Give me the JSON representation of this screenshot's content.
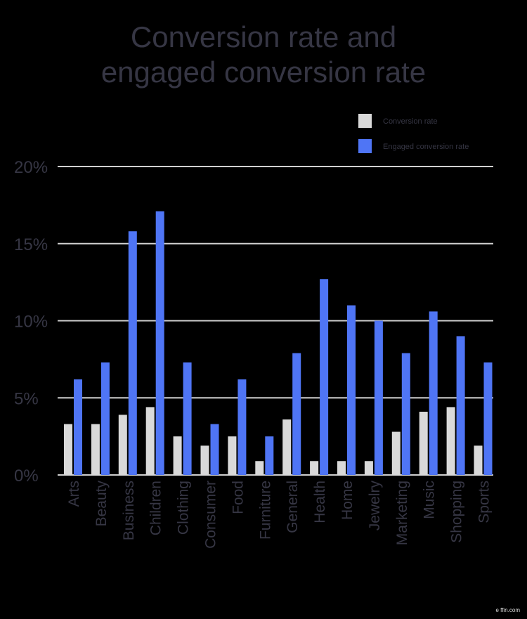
{
  "chart_data": {
    "type": "bar",
    "title_lines": [
      "Conversion rate and",
      "engaged conversion rate"
    ],
    "categories": [
      "Arts",
      "Beauty",
      "Business",
      "Children",
      "Clothing",
      "Consumer",
      "Food",
      "Furniture",
      "General",
      "Health",
      "Home",
      "Jewelry",
      "Marketing",
      "Music",
      "Shopping",
      "Sports"
    ],
    "series": [
      {
        "name": "Conversion rate",
        "color": "#d9d9d9",
        "values": [
          3.3,
          3.3,
          3.9,
          4.4,
          2.5,
          1.9,
          2.5,
          0.9,
          3.6,
          0.9,
          0.9,
          0.9,
          2.8,
          4.1,
          4.4,
          1.9
        ]
      },
      {
        "name": "Engaged conversion rate",
        "color": "#4f75f5",
        "values": [
          6.2,
          7.3,
          15.8,
          17.1,
          7.3,
          3.3,
          6.2,
          2.5,
          7.9,
          12.7,
          11.0,
          10.0,
          7.9,
          10.6,
          9.0,
          7.3
        ]
      }
    ],
    "ylim": [
      0,
      20
    ],
    "yticks": [
      0,
      5,
      10,
      15,
      20
    ],
    "ytick_labels": [
      "0%",
      "5%",
      "10%",
      "15%",
      "20%"
    ],
    "grid": true,
    "legend_position": "top-right",
    "text_color": "#363644"
  },
  "watermark": "e ffin.com"
}
